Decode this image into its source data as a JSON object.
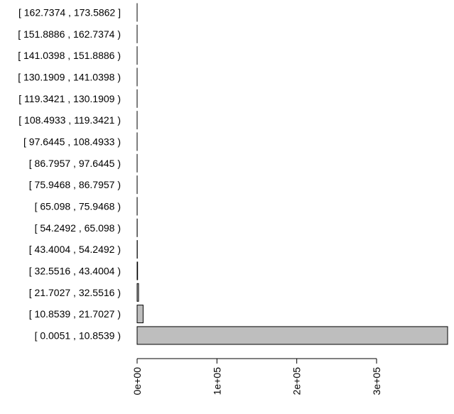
{
  "chart_data": {
    "type": "bar",
    "orientation": "horizontal",
    "categories": [
      "[ 0.0051 , 10.8539 )",
      "[ 10.8539 , 21.7027 )",
      "[ 21.7027 , 32.5516 )",
      "[ 32.5516 , 43.4004 )",
      "[ 43.4004 , 54.2492 )",
      "[ 54.2492 , 65.098 )",
      "[ 65.098 , 75.9468 )",
      "[ 75.9468 , 86.7957 )",
      "[ 86.7957 , 97.6445 )",
      "[ 97.6445 , 108.4933 )",
      "[ 108.4933 , 119.3421 )",
      "[ 119.3421 , 130.1909 )",
      "[ 130.1909 , 141.0398 )",
      "[ 141.0398 , 151.8886 )",
      "[ 151.8886 , 162.7374 )",
      "[ 162.7374 , 173.5862 ]"
    ],
    "values": [
      389000,
      7500,
      1800,
      600,
      250,
      120,
      60,
      30,
      20,
      10,
      5,
      5,
      3,
      2,
      1,
      1
    ],
    "xlim": [
      0,
      389000
    ],
    "x_ticks": [
      0,
      100000,
      200000,
      300000
    ],
    "x_tick_labels": [
      "0e+00",
      "1e+05",
      "2e+05",
      "3e+05"
    ],
    "title": "",
    "xlabel": "",
    "ylabel": "",
    "grid": false,
    "legend": "none",
    "bar_color": "#bebebe",
    "border_color": "#000000"
  }
}
